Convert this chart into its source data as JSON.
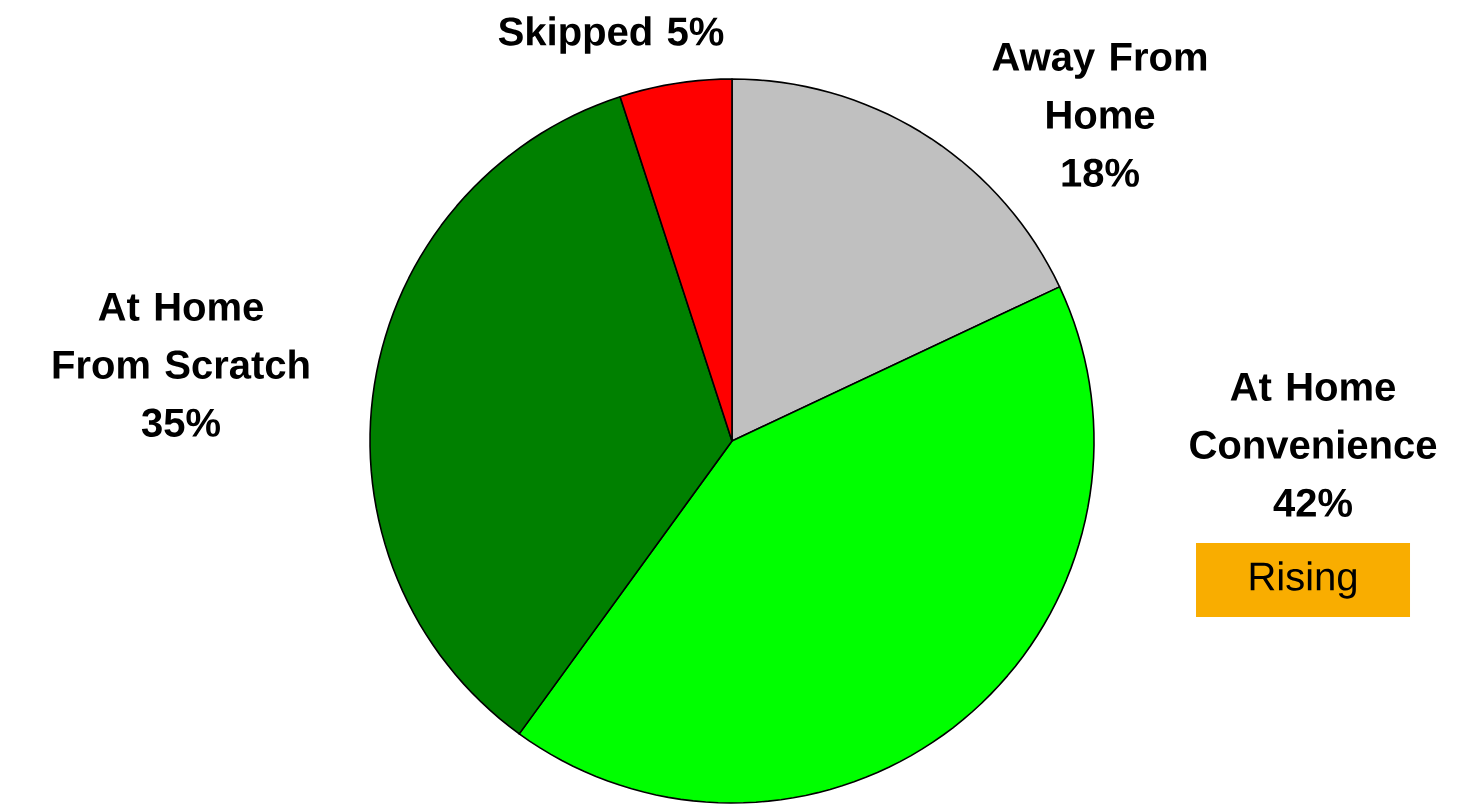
{
  "chart_data": {
    "type": "pie",
    "categories": [
      "Away From Home",
      "At Home Convenience",
      "At Home From Scratch",
      "Skipped"
    ],
    "values": [
      18,
      42,
      35,
      5
    ],
    "colors": [
      "#c0c0c0",
      "#00ff00",
      "#008000",
      "#ff0000"
    ],
    "value_labels": [
      "18%",
      "42%",
      "35%",
      "5%"
    ],
    "annotations": [
      "Rising"
    ]
  }
}
